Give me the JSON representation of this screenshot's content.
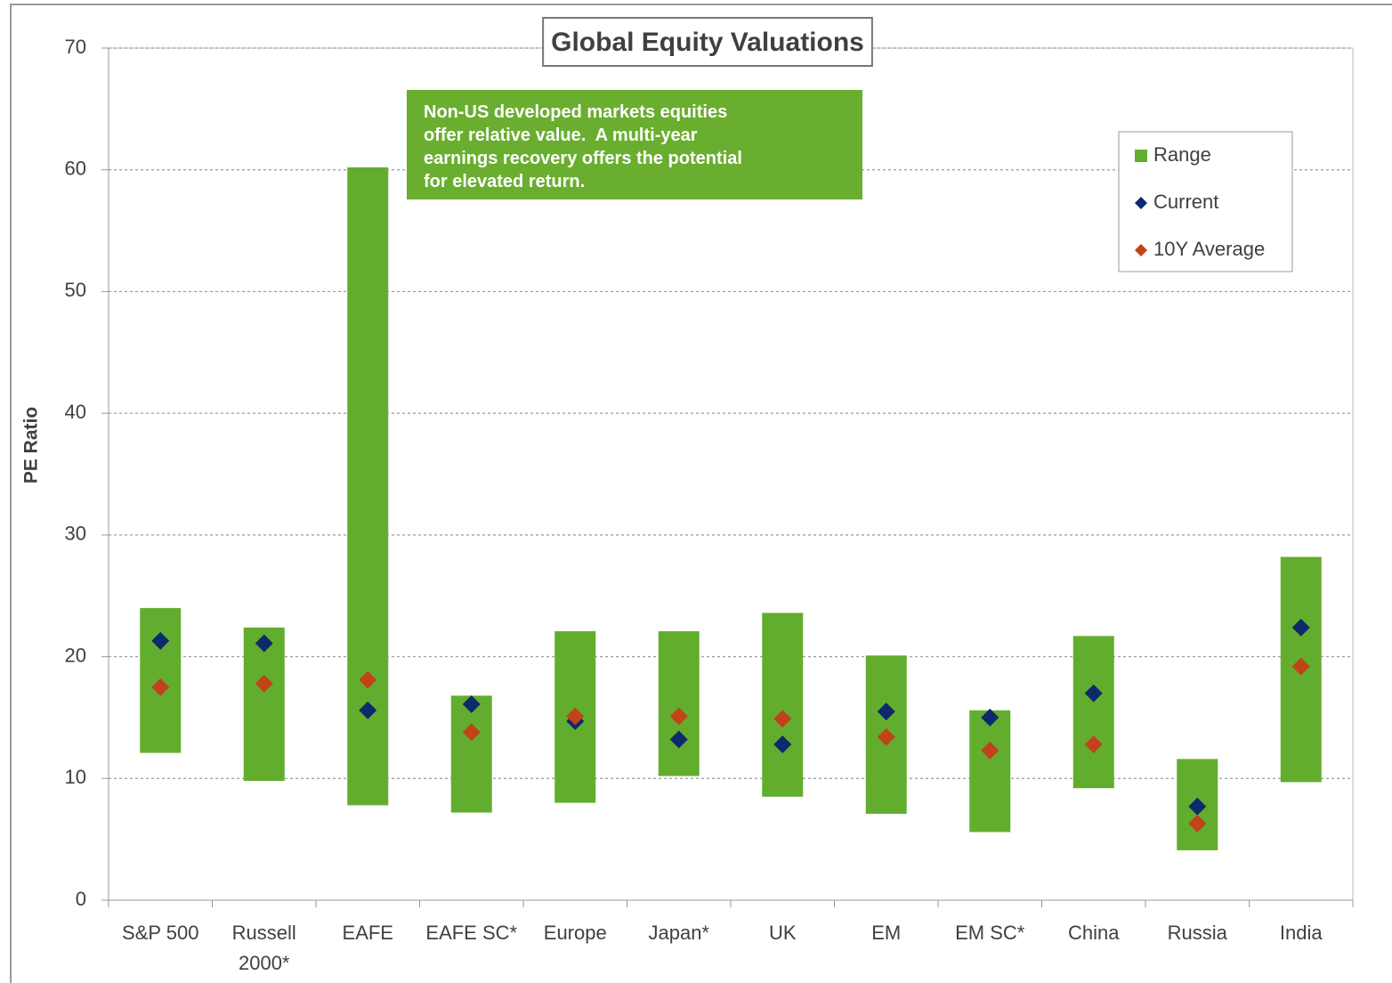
{
  "chart_data": {
    "type": "range",
    "title": "Global Equity Valuations",
    "y_label": "PE Ratio",
    "annotation": [
      "Non-US developed markets equities",
      "offer relative value.  A multi-year",
      "earnings recovery offers the potential",
      "for elevated return."
    ],
    "categories": [
      "S&P 500",
      "Russell 2000*",
      "EAFE",
      "EAFE SC*",
      "Europe",
      "Japan*",
      "UK",
      "EM",
      "EM SC*",
      "China",
      "Russia",
      "India"
    ],
    "series": [
      {
        "name": "Range",
        "color": "#63ad2e",
        "low": [
          12.1,
          9.8,
          7.8,
          7.2,
          8.0,
          10.2,
          8.5,
          7.1,
          5.6,
          9.2,
          4.1,
          9.7
        ],
        "high": [
          24.0,
          22.4,
          60.2,
          16.8,
          22.1,
          22.1,
          23.6,
          20.1,
          15.6,
          21.7,
          11.6,
          28.2
        ]
      },
      {
        "name": "Current",
        "color": "#0d2a6b",
        "values": [
          21.3,
          21.1,
          15.6,
          16.1,
          14.7,
          13.2,
          12.8,
          15.5,
          15.0,
          17.0,
          7.7,
          22.4
        ]
      },
      {
        "name": "10Y Average",
        "color": "#c0431a",
        "values": [
          17.5,
          17.8,
          18.1,
          13.8,
          15.1,
          15.1,
          14.9,
          13.4,
          12.3,
          12.8,
          6.3,
          19.2
        ]
      }
    ],
    "ylim": [
      0,
      70
    ],
    "yticks": [
      0,
      10,
      20,
      30,
      40,
      50,
      60,
      70
    ],
    "grid": true,
    "legend": "top-right"
  }
}
